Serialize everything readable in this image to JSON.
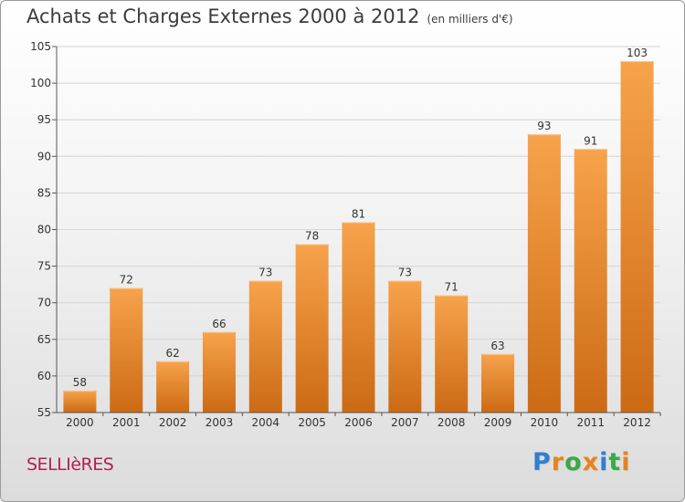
{
  "header": {
    "title": "Achats et Charges Externes 2000 à 2012",
    "subtitle": "(en milliers d'€)"
  },
  "commune": "SELLIèRES",
  "logo": {
    "text": "Proxiti",
    "letters": [
      {
        "ch": "P",
        "color": "#2f7fcf"
      },
      {
        "ch": "r",
        "color": "#e8821e"
      },
      {
        "ch": "o",
        "color": "#3aa84a"
      },
      {
        "ch": "x",
        "color": "#e8821e"
      },
      {
        "ch": "i",
        "color": "#2f7fcf"
      },
      {
        "ch": "t",
        "color": "#3aa84a"
      },
      {
        "ch": "i",
        "color": "#e8821e"
      }
    ]
  },
  "colors": {
    "bar_light": "#f7a34c",
    "bar_dark": "#cc6a14",
    "grid": "#d4d4d4",
    "axis": "#555555",
    "commune": "#b0234e"
  },
  "chart_data": {
    "type": "bar",
    "title": "Achats et Charges Externes 2000 à 2012",
    "subtitle": "(en milliers d'€)",
    "categories": [
      "2000",
      "2001",
      "2002",
      "2003",
      "2004",
      "2005",
      "2006",
      "2007",
      "2008",
      "2009",
      "2010",
      "2011",
      "2012"
    ],
    "values": [
      58,
      72,
      62,
      66,
      73,
      78,
      81,
      73,
      71,
      63,
      93,
      91,
      103
    ],
    "ylim": [
      55,
      105
    ],
    "yticks": [
      55,
      60,
      65,
      70,
      75,
      80,
      85,
      90,
      95,
      100,
      105
    ],
    "grid": true,
    "data_labels": true
  }
}
